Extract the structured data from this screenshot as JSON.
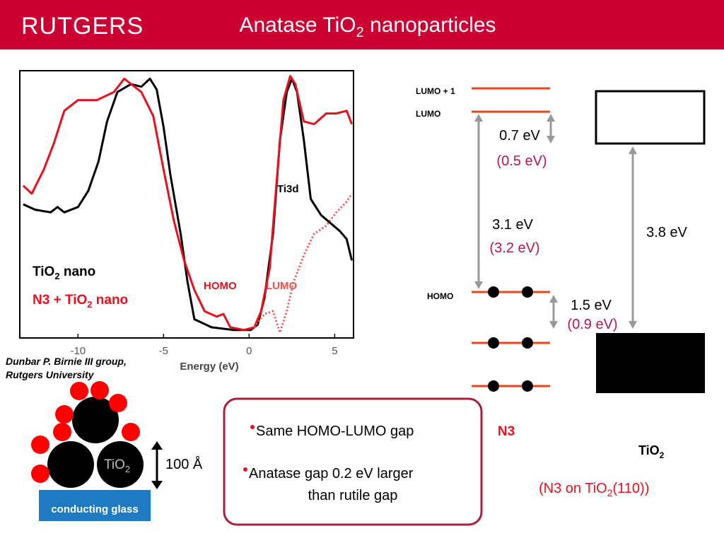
{
  "header": {
    "logo": "RUTGERS",
    "title": [
      "Anatase TiO",
      "2",
      " nanoparticles"
    ]
  },
  "chart_data": {
    "type": "line",
    "x_label": "Energy (eV)",
    "xlim": [
      -13.4,
      6.1
    ],
    "xticks": [
      -10,
      -5,
      0,
      5
    ],
    "ylim": [
      0,
      1
    ],
    "series": [
      {
        "color": "#000000",
        "style": "solid",
        "x": [
          -13.2,
          -12.5,
          -11.6,
          -11.2,
          -10.8,
          -10,
          -9.4,
          -8.8,
          -8.3,
          -7.7,
          -6.9,
          -6.3,
          -5.8,
          -5.4,
          -5.0,
          -4.6,
          -4.0,
          -3.6,
          -3.2,
          -2.2,
          -0.9,
          0.1,
          0.5,
          0.9,
          1.4,
          1.8,
          2.2,
          2.5,
          2.8,
          3.2,
          3.6,
          4.2,
          5.3,
          5.7,
          6.0
        ],
        "values": [
          0.5,
          0.48,
          0.47,
          0.49,
          0.47,
          0.49,
          0.55,
          0.66,
          0.81,
          0.92,
          0.95,
          0.94,
          0.97,
          0.93,
          0.79,
          0.61,
          0.39,
          0.21,
          0.07,
          0.04,
          0.03,
          0.03,
          0.05,
          0.15,
          0.39,
          0.74,
          0.92,
          0.97,
          0.92,
          0.74,
          0.52,
          0.46,
          0.4,
          0.37,
          0.29
        ]
      },
      {
        "color": "#e8101e",
        "style": "solid",
        "x": [
          -13.2,
          -12.7,
          -12.0,
          -11.4,
          -10.8,
          -10,
          -8.9,
          -7.9,
          -7.3,
          -6.3,
          -5.6,
          -5.0,
          -4.4,
          -3.8,
          -3.2,
          -2.6,
          -1.9,
          -1.5,
          -1.1,
          -0.3,
          0.3,
          0.7,
          1.2,
          1.6,
          2.0,
          2.4,
          2.7,
          3.2,
          3.8,
          4.5,
          5.1,
          5.7,
          6.0
        ],
        "values": [
          0.57,
          0.54,
          0.63,
          0.73,
          0.85,
          0.89,
          0.89,
          0.92,
          0.97,
          0.92,
          0.83,
          0.63,
          0.44,
          0.29,
          0.18,
          0.1,
          0.08,
          0.09,
          0.04,
          0.03,
          0.04,
          0.1,
          0.26,
          0.58,
          0.89,
          0.98,
          0.95,
          0.81,
          0.8,
          0.84,
          0.84,
          0.85,
          0.8
        ]
      },
      {
        "color": "#f0504a",
        "style": "dotted",
        "x": [
          0.3,
          0.9,
          1.4,
          1.8,
          2.2,
          2.6,
          3.2,
          3.8,
          4.5,
          5.1,
          5.7,
          6.0
        ],
        "values": [
          0.04,
          0.09,
          0.1,
          0.02,
          0.1,
          0.21,
          0.31,
          0.39,
          0.42,
          0.47,
          0.51,
          0.54
        ]
      }
    ],
    "annotations": [
      "Ti3d",
      "HOMO",
      "LUMO"
    ],
    "legend": [
      {
        "parts": [
          "TiO",
          "2",
          " nano"
        ],
        "color": "#000000"
      },
      {
        "parts": [
          "N3 + TiO",
          "2",
          " nano"
        ],
        "color": "#e8101e"
      }
    ]
  },
  "credit": [
    "Dunbar P. Birnie III group,",
    "Rutgers University"
  ],
  "particles": {
    "label": [
      "TiO",
      "2"
    ],
    "scale": "100 Å",
    "substrate": "conducting glass"
  },
  "summary": [
    "Same HOMO-LUMO gap",
    "Anatase gap 0.2 eV larger",
    "than rutile gap"
  ],
  "levels": {
    "lumo1": "LUMO + 1",
    "lumo": "LUMO",
    "homo": "HOMO",
    "gap1": "0.7 eV",
    "gap1_alt": "(0.5 eV)",
    "gap2": "3.1 eV",
    "gap2_alt": "(3.2 eV)",
    "gap3": "3.8 eV",
    "gap4": "1.5 eV",
    "gap4_alt": "(0.9 eV)",
    "n3": "N3",
    "tio2": [
      "TiO",
      "2"
    ],
    "note": [
      "(N3 on TiO",
      "2",
      "(110))"
    ]
  }
}
